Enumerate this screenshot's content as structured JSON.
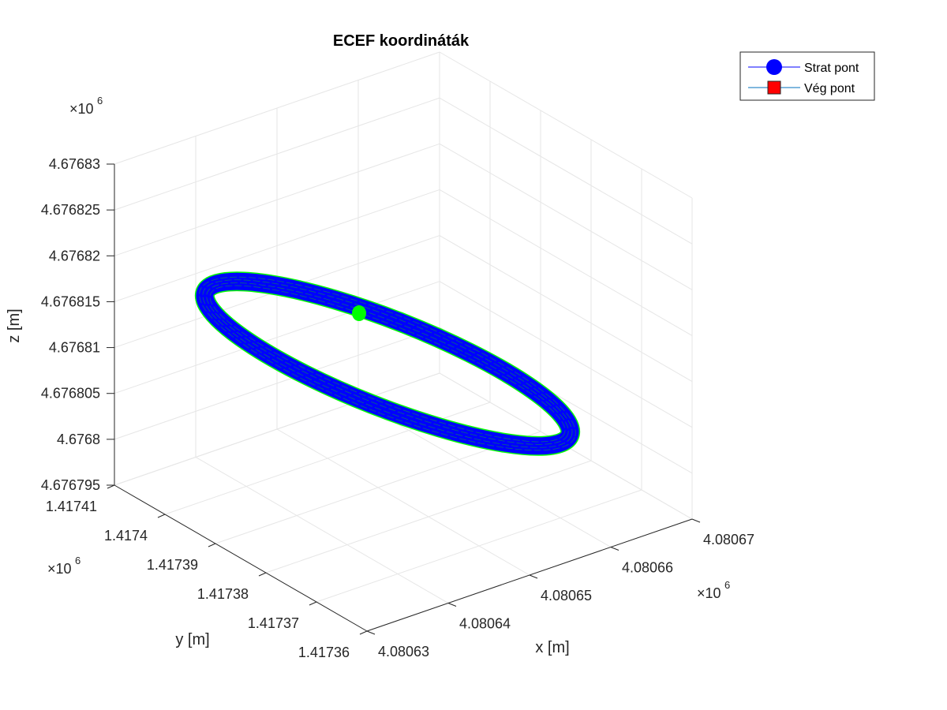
{
  "chart_data": {
    "type": "line3d",
    "title": "ECEF koordináták",
    "xlabel": "x [m]",
    "ylabel": "y [m]",
    "zlabel": "z [m]",
    "multiplier": "×10",
    "multiplier_exp": "6",
    "xticks": [
      "4.08063",
      "4.08064",
      "4.08065",
      "4.08066",
      "4.08067"
    ],
    "yticks": [
      "1.41736",
      "1.41737",
      "1.41738",
      "1.41739",
      "1.4174",
      "1.41741"
    ],
    "zticks": [
      "4.676795",
      "4.6768",
      "4.676805",
      "4.67681",
      "4.676815",
      "4.67682",
      "4.676825",
      "4.67683"
    ],
    "xlim": [
      4.08063,
      4.08067
    ],
    "ylim": [
      1.41736,
      1.41741
    ],
    "zlim": [
      4.676795,
      4.67683
    ],
    "grid": true,
    "legend_position": "top-right",
    "series": [
      {
        "name": "Strat pont",
        "marker": "circle",
        "color": "#0000ff"
      },
      {
        "name": "Vég pont",
        "marker": "square",
        "color": "#ff0000"
      }
    ],
    "trajectory_colors": {
      "fill": "#0000ff",
      "edge": "#00ff00"
    },
    "start_marker_color": "#00ff00"
  }
}
